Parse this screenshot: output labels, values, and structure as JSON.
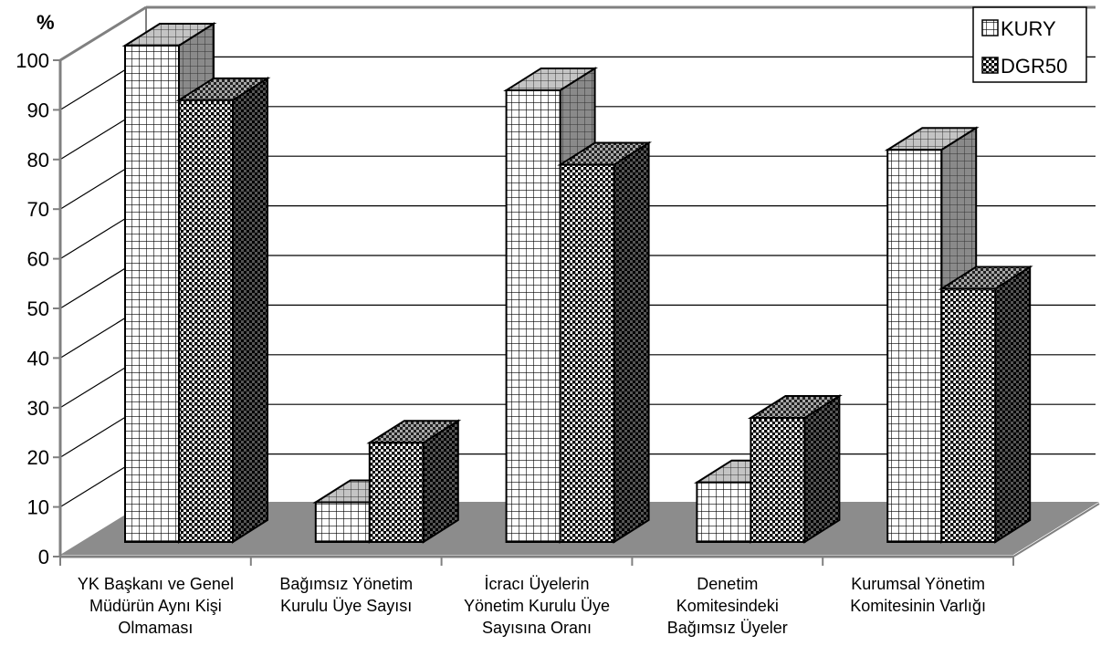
{
  "chart_data": {
    "type": "bar",
    "style": "3d-clustered",
    "ylabel": "%",
    "ylim": [
      0,
      100
    ],
    "yticks": [
      0,
      10,
      20,
      30,
      40,
      50,
      60,
      70,
      80,
      90,
      100
    ],
    "grid": true,
    "legend_position": "top-right",
    "categories": [
      [
        "YK Başkanı ve Genel",
        "Müdürün Aynı Kişi",
        "Olmaması"
      ],
      [
        "Bağımsız Yönetim",
        "Kurulu Üye Sayısı"
      ],
      [
        "İcracı Üyelerin",
        "Yönetim Kurulu Üye",
        "Sayısına Oranı"
      ],
      [
        "Denetim",
        "Komitesindeki",
        "Bağımsız Üyeler"
      ],
      [
        "Kurumsal Yönetim",
        "Komitesinin Varlığı"
      ]
    ],
    "series": [
      {
        "name": "KURY",
        "pattern": "grid",
        "values": [
          100,
          8,
          91,
          12,
          79
        ]
      },
      {
        "name": "DGR50",
        "pattern": "dense",
        "values": [
          89,
          20,
          76,
          25,
          51
        ]
      }
    ]
  }
}
